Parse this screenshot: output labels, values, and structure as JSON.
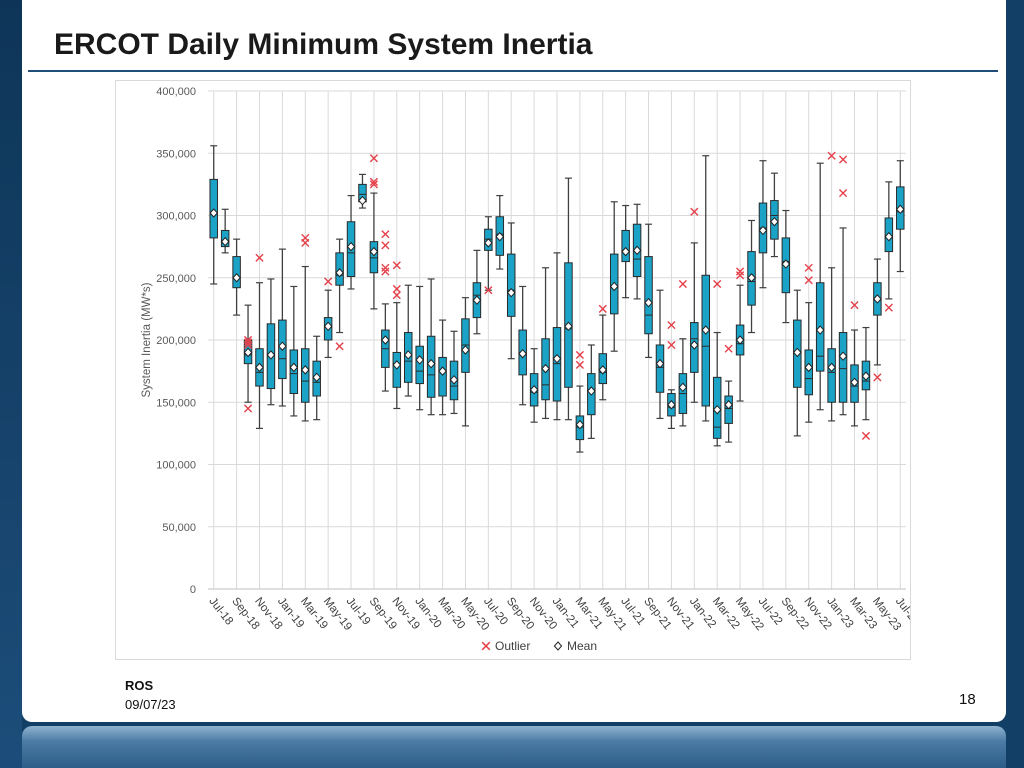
{
  "slide": {
    "title": "ERCOT Daily Minimum System Inertia",
    "footer_org": "ROS",
    "footer_date": "09/07/23",
    "page_number": "18"
  },
  "colors": {
    "box_fill": "#1aa3c6",
    "box_stroke": "#2a2a2a",
    "whisker": "#404040",
    "outlier": "#e5404a",
    "grid": "#d9d9d9",
    "title_rule": "#1f4e79"
  },
  "chart_data": {
    "type": "box",
    "ylabel": "System Inertia (MW*s)",
    "ylim": [
      0,
      400000
    ],
    "yticks": [
      {
        "value": 0,
        "label": "0"
      },
      {
        "value": 50000,
        "label": "50,000"
      },
      {
        "value": 100000,
        "label": "100,000"
      },
      {
        "value": 150000,
        "label": "150,000"
      },
      {
        "value": 200000,
        "label": "200,000"
      },
      {
        "value": 250000,
        "label": "250,000"
      },
      {
        "value": 300000,
        "label": "300,000"
      },
      {
        "value": 350000,
        "label": "350,000"
      },
      {
        "value": 400000,
        "label": "400,000"
      }
    ],
    "grid": true,
    "x_tick_labels": [
      "Jul-18",
      "Sep-18",
      "Nov-18",
      "Jan-19",
      "Mar-19",
      "May-19",
      "Jul-19",
      "Sep-19",
      "Nov-19",
      "Jan-20",
      "Mar-20",
      "May-20",
      "Jul-20",
      "Sep-20",
      "Nov-20",
      "Jan-21",
      "Mar-21",
      "May-21",
      "Jul-21",
      "Sep-21",
      "Nov-21",
      "Jan-22",
      "Mar-22",
      "May-22",
      "Jul-22",
      "Sep-22",
      "Nov-22",
      "Jan-23",
      "Mar-23",
      "May-23",
      "Jul-23"
    ],
    "legend": {
      "position": "bottom",
      "items": [
        {
          "label": "Outlier",
          "marker": "x"
        },
        {
          "label": "Mean",
          "marker": "diamond"
        }
      ]
    },
    "months": [
      {
        "month": "Jul-18",
        "min": 245000,
        "q1": 282000,
        "median": 301000,
        "q3": 329000,
        "max": 356000,
        "mean": 302000,
        "outliers": []
      },
      {
        "month": "Aug-18",
        "min": 270000,
        "q1": 275000,
        "median": 280000,
        "q3": 288000,
        "max": 305000,
        "mean": 279000,
        "outliers": []
      },
      {
        "month": "Sep-18",
        "min": 220000,
        "q1": 242000,
        "median": 250000,
        "q3": 267000,
        "max": 281000,
        "mean": 250000,
        "outliers": []
      },
      {
        "month": "Oct-18",
        "min": 150000,
        "q1": 181000,
        "median": 188000,
        "q3": 200000,
        "max": 228000,
        "mean": 190000,
        "outliers": [
          200000,
          198000,
          196000,
          145000
        ]
      },
      {
        "month": "Nov-18",
        "min": 129000,
        "q1": 163000,
        "median": 174000,
        "q3": 193000,
        "max": 246000,
        "mean": 178000,
        "outliers": [
          266000
        ]
      },
      {
        "month": "Dec-18",
        "min": 148000,
        "q1": 161000,
        "median": 189000,
        "q3": 213000,
        "max": 249000,
        "mean": 188000,
        "outliers": []
      },
      {
        "month": "Jan-19",
        "min": 147000,
        "q1": 169000,
        "median": 185000,
        "q3": 216000,
        "max": 273000,
        "mean": 195000,
        "outliers": []
      },
      {
        "month": "Feb-19",
        "min": 139000,
        "q1": 157000,
        "median": 173000,
        "q3": 192000,
        "max": 243000,
        "mean": 178000,
        "outliers": []
      },
      {
        "month": "Mar-19",
        "min": 135000,
        "q1": 150000,
        "median": 167000,
        "q3": 193000,
        "max": 259000,
        "mean": 176000,
        "outliers": [
          282000,
          278000
        ]
      },
      {
        "month": "Apr-19",
        "min": 136000,
        "q1": 155000,
        "median": 166000,
        "q3": 183000,
        "max": 203000,
        "mean": 170000,
        "outliers": []
      },
      {
        "month": "May-19",
        "min": 186000,
        "q1": 200000,
        "median": 210000,
        "q3": 218000,
        "max": 240000,
        "mean": 211000,
        "outliers": [
          247000
        ]
      },
      {
        "month": "Jun-19",
        "min": 206000,
        "q1": 244000,
        "median": 252000,
        "q3": 270000,
        "max": 281000,
        "mean": 254000,
        "outliers": [
          195000
        ]
      },
      {
        "month": "Jul-19",
        "min": 241000,
        "q1": 251000,
        "median": 270000,
        "q3": 295000,
        "max": 316000,
        "mean": 275000,
        "outliers": []
      },
      {
        "month": "Aug-19",
        "min": 306000,
        "q1": 311000,
        "median": 317000,
        "q3": 325000,
        "max": 333000,
        "mean": 312000,
        "outliers": []
      },
      {
        "month": "Sep-19",
        "min": 225000,
        "q1": 254000,
        "median": 266000,
        "q3": 279000,
        "max": 318000,
        "mean": 271000,
        "outliers": [
          346000,
          327000,
          325000
        ]
      },
      {
        "month": "Oct-19",
        "min": 159000,
        "q1": 178000,
        "median": 193000,
        "q3": 208000,
        "max": 229000,
        "mean": 200000,
        "outliers": [
          285000,
          276000,
          258000,
          255000
        ]
      },
      {
        "month": "Nov-19",
        "min": 145000,
        "q1": 162000,
        "median": 181000,
        "q3": 190000,
        "max": 230000,
        "mean": 180000,
        "outliers": [
          260000,
          241000,
          236000
        ]
      },
      {
        "month": "Dec-19",
        "min": 155000,
        "q1": 166000,
        "median": 183000,
        "q3": 206000,
        "max": 244000,
        "mean": 188000,
        "outliers": []
      },
      {
        "month": "Jan-20",
        "min": 144000,
        "q1": 165000,
        "median": 175000,
        "q3": 195000,
        "max": 243000,
        "mean": 184000,
        "outliers": []
      },
      {
        "month": "Feb-20",
        "min": 140000,
        "q1": 154000,
        "median": 172000,
        "q3": 203000,
        "max": 249000,
        "mean": 181000,
        "outliers": []
      },
      {
        "month": "Mar-20",
        "min": 140000,
        "q1": 155000,
        "median": 175000,
        "q3": 186000,
        "max": 216000,
        "mean": 175000,
        "outliers": []
      },
      {
        "month": "Apr-20",
        "min": 141000,
        "q1": 152000,
        "median": 163000,
        "q3": 183000,
        "max": 207000,
        "mean": 168000,
        "outliers": []
      },
      {
        "month": "May-20",
        "min": 131000,
        "q1": 174000,
        "median": 196000,
        "q3": 217000,
        "max": 234000,
        "mean": 192000,
        "outliers": []
      },
      {
        "month": "Jun-20",
        "min": 205000,
        "q1": 218000,
        "median": 236000,
        "q3": 246000,
        "max": 272000,
        "mean": 232000,
        "outliers": []
      },
      {
        "month": "Jul-20",
        "min": 240000,
        "q1": 272000,
        "median": 281000,
        "q3": 289000,
        "max": 299000,
        "mean": 278000,
        "outliers": [
          240000
        ]
      },
      {
        "month": "Aug-20",
        "min": 257000,
        "q1": 268000,
        "median": 285000,
        "q3": 299000,
        "max": 316000,
        "mean": 283000,
        "outliers": []
      },
      {
        "month": "Sep-20",
        "min": 185000,
        "q1": 219000,
        "median": 240000,
        "q3": 269000,
        "max": 294000,
        "mean": 238000,
        "outliers": []
      },
      {
        "month": "Oct-20",
        "min": 148000,
        "q1": 172000,
        "median": 190000,
        "q3": 208000,
        "max": 243000,
        "mean": 189000,
        "outliers": []
      },
      {
        "month": "Nov-20",
        "min": 134000,
        "q1": 147000,
        "median": 158000,
        "q3": 173000,
        "max": 193000,
        "mean": 160000,
        "outliers": []
      },
      {
        "month": "Dec-20",
        "min": 137000,
        "q1": 152000,
        "median": 164000,
        "q3": 201000,
        "max": 258000,
        "mean": 177000,
        "outliers": []
      },
      {
        "month": "Jan-21",
        "min": 136000,
        "q1": 151000,
        "median": 181000,
        "q3": 210000,
        "max": 270000,
        "mean": 185000,
        "outliers": []
      },
      {
        "month": "Feb-21",
        "min": 136000,
        "q1": 162000,
        "median": 209000,
        "q3": 262000,
        "max": 330000,
        "mean": 211000,
        "outliers": []
      },
      {
        "month": "Mar-21",
        "min": 110000,
        "q1": 120000,
        "median": 130000,
        "q3": 139000,
        "max": 163000,
        "mean": 132000,
        "outliers": [
          188000,
          180000
        ]
      },
      {
        "month": "Apr-21",
        "min": 121000,
        "q1": 140000,
        "median": 160000,
        "q3": 173000,
        "max": 196000,
        "mean": 159000,
        "outliers": []
      },
      {
        "month": "May-21",
        "min": 152000,
        "q1": 165000,
        "median": 174000,
        "q3": 189000,
        "max": 220000,
        "mean": 176000,
        "outliers": [
          225000
        ]
      },
      {
        "month": "Jun-21",
        "min": 191000,
        "q1": 221000,
        "median": 243000,
        "q3": 269000,
        "max": 311000,
        "mean": 243000,
        "outliers": []
      },
      {
        "month": "Jul-21",
        "min": 234000,
        "q1": 263000,
        "median": 272000,
        "q3": 288000,
        "max": 308000,
        "mean": 271000,
        "outliers": []
      },
      {
        "month": "Aug-21",
        "min": 233000,
        "q1": 251000,
        "median": 265000,
        "q3": 293000,
        "max": 309000,
        "mean": 272000,
        "outliers": []
      },
      {
        "month": "Sep-21",
        "min": 186000,
        "q1": 205000,
        "median": 220000,
        "q3": 267000,
        "max": 293000,
        "mean": 230000,
        "outliers": []
      },
      {
        "month": "Oct-21",
        "min": 137000,
        "q1": 158000,
        "median": 178000,
        "q3": 196000,
        "max": 240000,
        "mean": 181000,
        "outliers": []
      },
      {
        "month": "Nov-21",
        "min": 129000,
        "q1": 139000,
        "median": 146000,
        "q3": 157000,
        "max": 160000,
        "mean": 148000,
        "outliers": [
          212000,
          196000
        ]
      },
      {
        "month": "Dec-21",
        "min": 131000,
        "q1": 141000,
        "median": 157000,
        "q3": 173000,
        "max": 201000,
        "mean": 162000,
        "outliers": [
          245000
        ]
      },
      {
        "month": "Jan-22",
        "min": 150000,
        "q1": 174000,
        "median": 201000,
        "q3": 214000,
        "max": 278000,
        "mean": 196000,
        "outliers": [
          303000
        ]
      },
      {
        "month": "Feb-22",
        "min": 135000,
        "q1": 147000,
        "median": 195000,
        "q3": 252000,
        "max": 348000,
        "mean": 208000,
        "outliers": []
      },
      {
        "month": "Mar-22",
        "min": 115000,
        "q1": 121000,
        "median": 130000,
        "q3": 170000,
        "max": 206000,
        "mean": 144000,
        "outliers": [
          245000
        ]
      },
      {
        "month": "Apr-22",
        "min": 118000,
        "q1": 133000,
        "median": 145000,
        "q3": 155000,
        "max": 167000,
        "mean": 148000,
        "outliers": [
          193000
        ]
      },
      {
        "month": "May-22",
        "min": 151000,
        "q1": 188000,
        "median": 197000,
        "q3": 212000,
        "max": 244000,
        "mean": 200000,
        "outliers": [
          255000,
          252000
        ]
      },
      {
        "month": "Jun-22",
        "min": 206000,
        "q1": 228000,
        "median": 247000,
        "q3": 271000,
        "max": 296000,
        "mean": 250000,
        "outliers": []
      },
      {
        "month": "Jul-22",
        "min": 242000,
        "q1": 270000,
        "median": 290000,
        "q3": 310000,
        "max": 344000,
        "mean": 288000,
        "outliers": []
      },
      {
        "month": "Aug-22",
        "min": 267000,
        "q1": 281000,
        "median": 300000,
        "q3": 312000,
        "max": 334000,
        "mean": 295000,
        "outliers": []
      },
      {
        "month": "Sep-22",
        "min": 214000,
        "q1": 238000,
        "median": 263000,
        "q3": 282000,
        "max": 304000,
        "mean": 261000,
        "outliers": []
      },
      {
        "month": "Oct-22",
        "min": 123000,
        "q1": 162000,
        "median": 191000,
        "q3": 216000,
        "max": 240000,
        "mean": 190000,
        "outliers": []
      },
      {
        "month": "Nov-22",
        "min": 134000,
        "q1": 156000,
        "median": 169000,
        "q3": 192000,
        "max": 230000,
        "mean": 178000,
        "outliers": [
          258000,
          248000
        ]
      },
      {
        "month": "Dec-22",
        "min": 144000,
        "q1": 175000,
        "median": 187000,
        "q3": 246000,
        "max": 342000,
        "mean": 208000,
        "outliers": []
      },
      {
        "month": "Jan-23",
        "min": 135000,
        "q1": 150000,
        "median": 174000,
        "q3": 193000,
        "max": 258000,
        "mean": 178000,
        "outliers": [
          348000
        ]
      },
      {
        "month": "Feb-23",
        "min": 140000,
        "q1": 150000,
        "median": 177000,
        "q3": 206000,
        "max": 290000,
        "mean": 187000,
        "outliers": [
          345000,
          318000
        ]
      },
      {
        "month": "Mar-23",
        "min": 131000,
        "q1": 150000,
        "median": 163000,
        "q3": 180000,
        "max": 208000,
        "mean": 166000,
        "outliers": [
          228000
        ]
      },
      {
        "month": "Apr-23",
        "min": 136000,
        "q1": 160000,
        "median": 167000,
        "q3": 183000,
        "max": 210000,
        "mean": 171000,
        "outliers": [
          123000
        ]
      },
      {
        "month": "May-23",
        "min": 180000,
        "q1": 220000,
        "median": 232000,
        "q3": 246000,
        "max": 265000,
        "mean": 233000,
        "outliers": [
          170000
        ]
      },
      {
        "month": "Jun-23",
        "min": 233000,
        "q1": 271000,
        "median": 282000,
        "q3": 298000,
        "max": 327000,
        "mean": 283000,
        "outliers": [
          226000
        ]
      },
      {
        "month": "Jul-23",
        "min": 255000,
        "q1": 289000,
        "median": 303000,
        "q3": 323000,
        "max": 344000,
        "mean": 305000,
        "outliers": []
      }
    ]
  }
}
